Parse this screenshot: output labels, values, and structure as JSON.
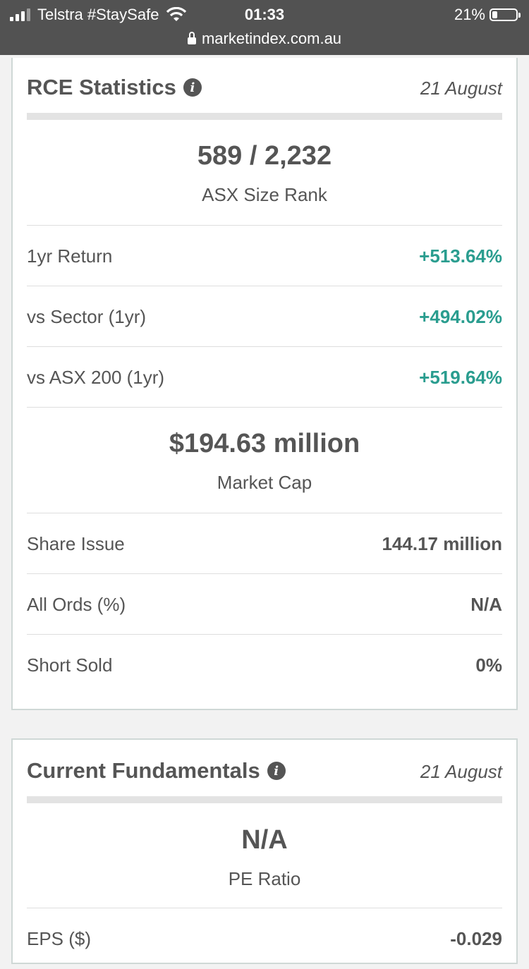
{
  "status_bar": {
    "carrier": "Telstra #StaySafe",
    "time": "01:33",
    "battery": "21%",
    "url": "marketindex.com.au"
  },
  "rce_statistics": {
    "title": "RCE Statistics",
    "date": "21 August",
    "size_rank": {
      "value": "589 / 2,232",
      "label": "ASX Size Rank"
    },
    "returns": [
      {
        "label": "1yr Return",
        "value": "+513.64%"
      },
      {
        "label": "vs Sector (1yr)",
        "value": "+494.02%"
      },
      {
        "label": "vs ASX 200 (1yr)",
        "value": "+519.64%"
      }
    ],
    "market_cap": {
      "value": "$194.63 million",
      "label": "Market Cap"
    },
    "details": [
      {
        "label": "Share Issue",
        "value": "144.17 million"
      },
      {
        "label": "All Ords (%)",
        "value": "N/A"
      },
      {
        "label": "Short Sold",
        "value": "0%"
      }
    ]
  },
  "current_fundamentals": {
    "title": "Current Fundamentals",
    "date": "21 August",
    "pe_ratio": {
      "value": "N/A",
      "label": "PE Ratio"
    },
    "rows": [
      {
        "label": "EPS ($)",
        "value": "-0.029"
      }
    ]
  },
  "colors": {
    "positive": "#2a9d8f",
    "status_bar": "#525252",
    "text": "#555555"
  }
}
